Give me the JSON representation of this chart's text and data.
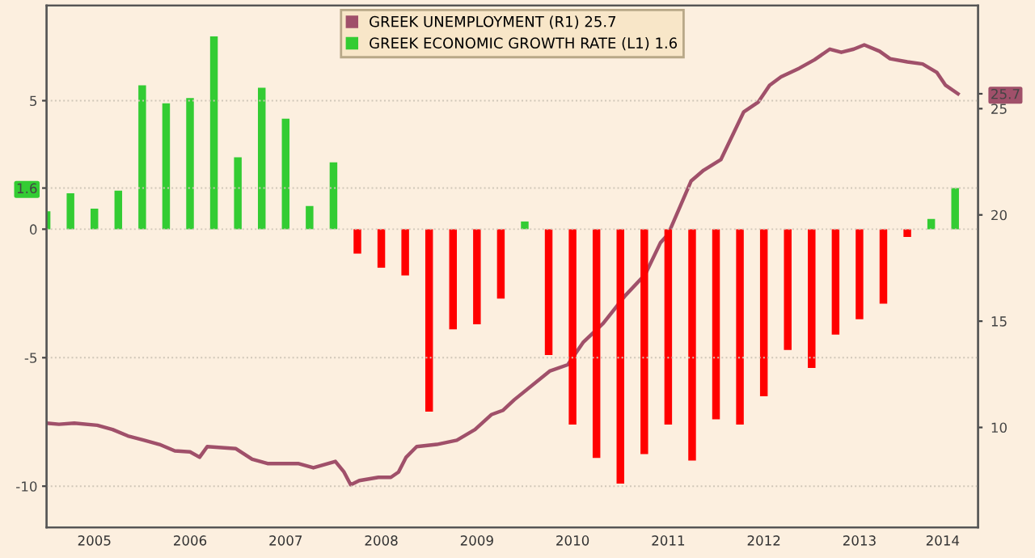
{
  "chart_data": {
    "type": "bar",
    "legend": "top",
    "grid": "y",
    "x": [
      2005.0,
      2005.25,
      2005.5,
      2005.75,
      2006.0,
      2006.25,
      2006.5,
      2006.75,
      2007.0,
      2007.25,
      2007.5,
      2007.75,
      2008.0,
      2008.25,
      2008.5,
      2008.75,
      2009.0,
      2009.25,
      2009.5,
      2009.75,
      2010.0,
      2010.25,
      2010.5,
      2010.75,
      2011.0,
      2011.25,
      2011.5,
      2011.75,
      2012.0,
      2012.25,
      2012.5,
      2012.75,
      2013.0,
      2013.25,
      2013.5,
      2013.75,
      2014.0,
      2014.25,
      2014.5
    ],
    "xlim": [
      2005.0,
      2014.74
    ],
    "xticks": [
      {
        "value": 2005.5,
        "label": "2005"
      },
      {
        "value": 2006.5,
        "label": "2006"
      },
      {
        "value": 2007.5,
        "label": "2007"
      },
      {
        "value": 2008.5,
        "label": "2008"
      },
      {
        "value": 2009.5,
        "label": "2009"
      },
      {
        "value": 2010.5,
        "label": "2010"
      },
      {
        "value": 2011.5,
        "label": "2011"
      },
      {
        "value": 2012.5,
        "label": "2012"
      },
      {
        "value": 2013.5,
        "label": "2013"
      },
      {
        "value": 2014.37,
        "label": "2014"
      }
    ],
    "ylim": [
      -11.6,
      8.7
    ],
    "yticks": [
      -10,
      -5,
      0,
      {
        "value": 1.6,
        "label": "1.6"
      },
      5
    ],
    "y2lim": [
      5.3,
      29.85
    ],
    "y2ticks": [
      10,
      15,
      20,
      25,
      {
        "value": 25.7,
        "label": "25.7"
      }
    ],
    "series": [
      {
        "name": "GREEK ECONOMIC GROWTH RATE (L1) 1.6",
        "color": "#33cc33",
        "colors": [
          "#33cc33",
          "#33cc33",
          "#33cc33",
          "#33cc33",
          "#33cc33",
          "#33cc33",
          "#33cc33",
          "#33cc33",
          "#33cc33",
          "#33cc33",
          "#33cc33",
          "#33cc33",
          "#33cc33",
          "#ff0000",
          "#ff0000",
          "#ff0000",
          "#ff0000",
          "#ff0000",
          "#ff0000",
          "#ff0000",
          "#33cc33",
          "#ff0000",
          "#ff0000",
          "#ff0000",
          "#ff0000",
          "#ff0000",
          "#ff0000",
          "#ff0000",
          "#ff0000",
          "#ff0000",
          "#ff0000",
          "#ff0000",
          "#ff0000",
          "#ff0000",
          "#ff0000",
          "#ff0000",
          "#ff0000",
          "#33cc33",
          "#33cc33"
        ],
        "values": [
          0.7,
          1.4,
          0.8,
          1.5,
          5.6,
          4.9,
          5.1,
          7.5,
          2.8,
          5.5,
          4.3,
          0.9,
          2.6,
          -0.95,
          -1.5,
          -1.8,
          -7.1,
          -3.9,
          -3.7,
          -2.7,
          0.3,
          -4.9,
          -7.6,
          -8.9,
          -9.9,
          -8.75,
          -7.6,
          -9.0,
          -7.4,
          -7.6,
          -6.5,
          -4.7,
          -5.4,
          -4.1,
          -3.5,
          -2.9,
          -0.3,
          0.4,
          1.6
        ]
      },
      {
        "name": "GREEK UNEMPLOYMENT (R1) 25.7",
        "type": "line",
        "axis": "y2",
        "color": "#a0506a",
        "x": [
          2005.0,
          2005.13,
          2005.29,
          2005.53,
          2005.69,
          2005.85,
          2006.02,
          2006.18,
          2006.34,
          2006.5,
          2006.6,
          2006.68,
          2006.98,
          2007.15,
          2007.31,
          2007.63,
          2007.79,
          2008.02,
          2008.11,
          2008.18,
          2008.27,
          2008.47,
          2008.6,
          2008.68,
          2008.76,
          2008.87,
          2009.08,
          2009.29,
          2009.48,
          2009.65,
          2009.77,
          2009.89,
          2010.26,
          2010.45,
          2010.61,
          2010.82,
          2011.05,
          2011.26,
          2011.42,
          2011.5,
          2011.74,
          2011.87,
          2012.05,
          2012.29,
          2012.44,
          2012.56,
          2012.68,
          2012.87,
          2013.03,
          2013.19,
          2013.31,
          2013.44,
          2013.55,
          2013.71,
          2013.82,
          2014.0,
          2014.16,
          2014.31,
          2014.4,
          2014.53
        ],
        "values": [
          10.2,
          10.15,
          10.2,
          10.1,
          9.9,
          9.6,
          9.4,
          9.2,
          8.9,
          8.85,
          8.6,
          9.1,
          9.0,
          8.5,
          8.3,
          8.3,
          8.1,
          8.4,
          7.9,
          7.3,
          7.5,
          7.65,
          7.65,
          7.9,
          8.6,
          9.1,
          9.2,
          9.4,
          9.9,
          10.6,
          10.8,
          11.3,
          12.65,
          12.95,
          14.0,
          14.9,
          16.2,
          17.2,
          18.7,
          19.1,
          21.6,
          22.1,
          22.6,
          24.85,
          25.3,
          26.1,
          26.5,
          26.9,
          27.3,
          27.8,
          27.65,
          27.8,
          28.0,
          27.7,
          27.35,
          27.2,
          27.1,
          26.7,
          26.1,
          25.7
        ]
      }
    ]
  }
}
